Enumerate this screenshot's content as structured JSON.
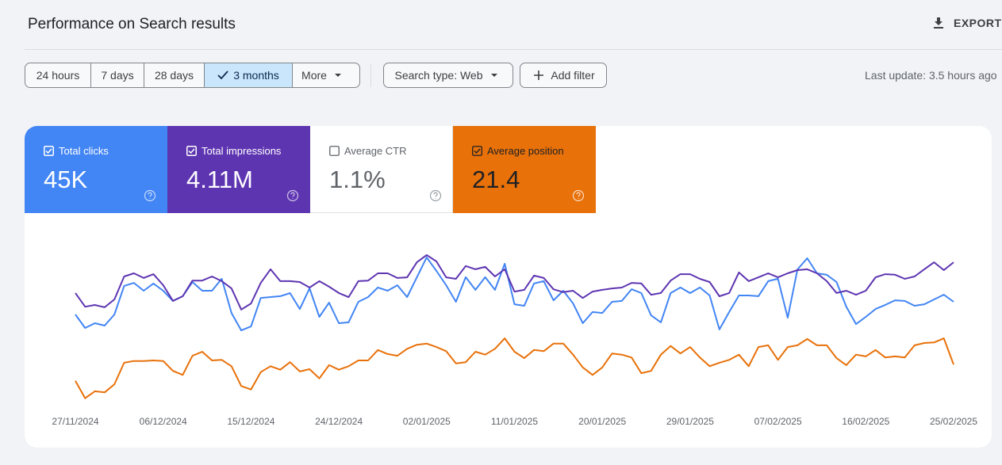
{
  "header": {
    "title": "Performance on Search results",
    "export": "EXPORT"
  },
  "filters": {
    "ranges": [
      "24 hours",
      "7 days",
      "28 days",
      "3 months",
      "More"
    ],
    "selected": 3,
    "search_type": "Search type: Web",
    "add_filter": "Add filter",
    "last_update": "Last update: 3.5 hours ago"
  },
  "average_ctr": {
    "label": "Average CTR",
    "value": "1.1%"
  },
  "chart_data": {
    "type": "line",
    "x": [
      "27/11/2024",
      "28/11/2024",
      "29/11/2024",
      "30/11/2024",
      "01/12/2024",
      "02/12/2024",
      "03/12/2024",
      "04/12/2024",
      "05/12/2024",
      "06/12/2024",
      "07/12/2024",
      "08/12/2024",
      "09/12/2024",
      "10/12/2024",
      "11/12/2024",
      "12/12/2024",
      "13/12/2024",
      "14/12/2024",
      "15/12/2024",
      "16/12/2024",
      "17/12/2024",
      "18/12/2024",
      "19/12/2024",
      "20/12/2024",
      "21/12/2024",
      "22/12/2024",
      "23/12/2024",
      "24/12/2024",
      "25/12/2024",
      "26/12/2024",
      "27/12/2024",
      "28/12/2024",
      "29/12/2024",
      "30/12/2024",
      "31/12/2024",
      "01/01/2025",
      "02/01/2025",
      "03/01/2025",
      "04/01/2025",
      "05/01/2025",
      "06/01/2025",
      "07/01/2025",
      "08/01/2025",
      "09/01/2025",
      "10/01/2025",
      "11/01/2025",
      "12/01/2025",
      "13/01/2025",
      "14/01/2025",
      "15/01/2025",
      "16/01/2025",
      "17/01/2025",
      "18/01/2025",
      "19/01/2025",
      "20/01/2025",
      "21/01/2025",
      "22/01/2025",
      "23/01/2025",
      "24/01/2025",
      "25/01/2025",
      "26/01/2025",
      "27/01/2025",
      "28/01/2025",
      "29/01/2025",
      "30/01/2025",
      "31/01/2025",
      "01/02/2025",
      "02/02/2025",
      "03/02/2025",
      "04/02/2025",
      "05/02/2025",
      "06/02/2025",
      "07/02/2025",
      "08/02/2025",
      "09/02/2025",
      "10/02/2025",
      "11/02/2025",
      "12/02/2025",
      "13/02/2025",
      "14/02/2025",
      "15/02/2025",
      "16/02/2025",
      "17/02/2025",
      "18/02/2025",
      "19/02/2025",
      "20/02/2025",
      "21/02/2025",
      "22/02/2025",
      "23/02/2025",
      "24/02/2025",
      "25/02/2025"
    ],
    "xticks": [
      "27/11/2024",
      "06/12/2024",
      "15/12/2024",
      "24/12/2024",
      "02/01/2025",
      "11/01/2025",
      "20/01/2025",
      "29/01/2025",
      "07/02/2025",
      "16/02/2025",
      "25/02/2025"
    ],
    "series": [
      {
        "name": "Total clicks",
        "total": "45K",
        "color": "#4285f4",
        "ylim": [
          0,
          800
        ],
        "values": [
          411,
          349,
          371,
          360,
          411,
          542,
          556,
          520,
          553,
          520,
          473,
          495,
          560,
          520,
          520,
          575,
          418,
          338,
          356,
          487,
          491,
          495,
          509,
          436,
          531,
          400,
          465,
          371,
          375,
          469,
          491,
          535,
          520,
          545,
          491,
          582,
          673,
          611,
          545,
          469,
          582,
          524,
          582,
          524,
          644,
          458,
          451,
          553,
          564,
          476,
          520,
          462,
          371,
          422,
          418,
          469,
          473,
          527,
          509,
          407,
          375,
          509,
          535,
          509,
          535,
          498,
          342,
          422,
          498,
          498,
          495,
          564,
          575,
          396,
          618,
          669,
          600,
          593,
          560,
          447,
          367,
          400,
          436,
          455,
          476,
          473,
          451,
          458,
          480,
          502,
          469
        ]
      },
      {
        "name": "Total impressions",
        "total": "4.11M",
        "color": "#5e35b1",
        "ylim": [
          0,
          60000
        ],
        "values": [
          38200,
          33500,
          34100,
          33300,
          36000,
          43900,
          45000,
          43400,
          44700,
          40900,
          35500,
          37100,
          42500,
          42500,
          43900,
          42300,
          39800,
          32500,
          34600,
          41700,
          46400,
          42300,
          42300,
          42000,
          40100,
          42300,
          40400,
          38200,
          36800,
          42300,
          42500,
          45000,
          45000,
          43400,
          43600,
          48800,
          51300,
          49100,
          43600,
          43100,
          47500,
          46400,
          47200,
          43900,
          46400,
          38700,
          39300,
          44200,
          43400,
          39500,
          38500,
          39000,
          36500,
          38700,
          39300,
          39800,
          40100,
          41700,
          41500,
          37600,
          38200,
          42500,
          44700,
          44700,
          43100,
          42000,
          37100,
          38200,
          45300,
          42300,
          43600,
          45000,
          43600,
          45000,
          46100,
          46400,
          45000,
          42300,
          38200,
          39000,
          37600,
          39000,
          43600,
          44700,
          44500,
          43100,
          43900,
          46400,
          48800,
          46100,
          48800
        ]
      },
      {
        "name": "Average position",
        "total": "21.4",
        "color": "#e8710a",
        "ylim": [
          30,
          0
        ],
        "values": [
          26.0,
          29.0,
          27.8,
          28.0,
          26.6,
          22.9,
          22.6,
          22.6,
          22.5,
          22.6,
          24.3,
          25.0,
          21.7,
          21.0,
          22.5,
          22.4,
          23.5,
          26.9,
          27.5,
          24.5,
          23.5,
          24.1,
          22.8,
          24.4,
          24.0,
          25.6,
          23.3,
          24.1,
          23.5,
          22.5,
          22.5,
          20.7,
          21.4,
          21.7,
          20.5,
          19.8,
          19.6,
          20.2,
          20.9,
          23.0,
          22.8,
          21.0,
          21.5,
          20.5,
          18.7,
          21.0,
          22.1,
          20.7,
          20.9,
          19.6,
          19.6,
          21.5,
          23.7,
          25.0,
          23.7,
          21.3,
          21.5,
          22.0,
          24.7,
          24.3,
          21.5,
          20.0,
          21.3,
          20.2,
          22.0,
          23.5,
          22.9,
          22.4,
          21.5,
          23.5,
          20.2,
          19.9,
          22.4,
          20.2,
          19.9,
          18.8,
          19.9,
          19.9,
          22.1,
          23.3,
          21.5,
          21.8,
          20.7,
          22.0,
          21.8,
          22.0,
          19.9,
          19.5,
          19.4,
          18.7,
          23.2
        ]
      }
    ]
  }
}
